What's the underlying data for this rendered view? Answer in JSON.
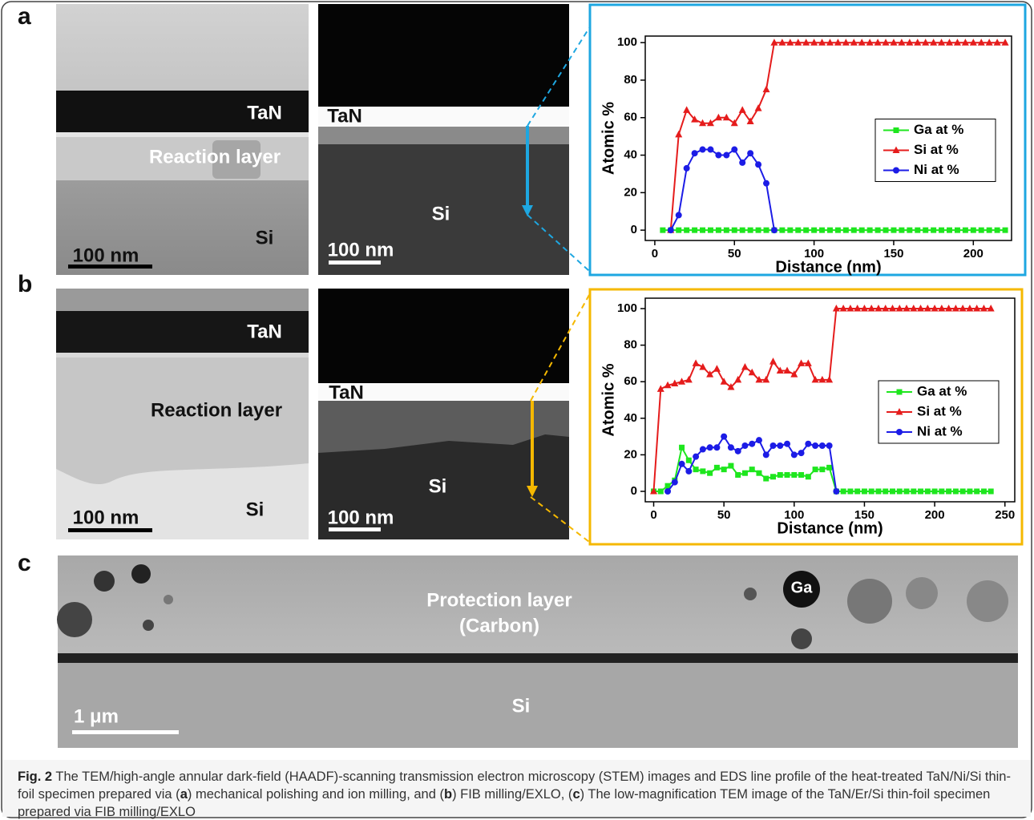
{
  "panels": [
    {
      "letter": "a",
      "images": [
        {
          "labels": [
            "TaN",
            "Reaction layer",
            "Si"
          ],
          "scale": "100 nm"
        },
        {
          "labels": [
            "TaN",
            "Si"
          ],
          "scale": "100 nm"
        }
      ]
    },
    {
      "letter": "b",
      "images": [
        {
          "labels": [
            "TaN",
            "Reaction layer",
            "Si"
          ],
          "scale": "100 nm"
        },
        {
          "labels": [
            "TaN",
            "Si"
          ],
          "scale": "100 nm"
        }
      ]
    },
    {
      "letter": "c",
      "images": [
        {
          "labels": [
            "Protection layer",
            "(Carbon)",
            "Ga",
            "Si"
          ],
          "scale": "1 μm"
        }
      ]
    }
  ],
  "caption": {
    "label": "Fig. 2",
    "parts": [
      "The TEM/high-angle annular dark-field (HAADF)-scanning transmission electron microscopy (STEM) images and EDS line profile of the heat-treated TaN/Ni/Si thin-foil specimen prepared via (",
      "a",
      ") mechanical polishing and ion milling, and (",
      "b",
      ") FIB milling/EXLO, (",
      "c",
      ") The low-magnification TEM image of the TaN/Er/Si thin-foil specimen prepared via FIB milling/EXLO"
    ]
  },
  "chart_data": [
    {
      "type": "line",
      "x_label": "Distance (nm)",
      "y_label": "Atomic %",
      "x": [
        5,
        10,
        15,
        20,
        25,
        30,
        35,
        40,
        45,
        50,
        55,
        60,
        65,
        70,
        75,
        80,
        85,
        90,
        95,
        100,
        105,
        110,
        115,
        120,
        125,
        130,
        135,
        140,
        145,
        150,
        155,
        160,
        165,
        170,
        175,
        180,
        185,
        190,
        195,
        200,
        205,
        210,
        215,
        220
      ],
      "xlim": [
        -6,
        224
      ],
      "xticks": [
        0,
        50,
        100,
        150,
        200
      ],
      "ylim": [
        -5.5,
        103.5
      ],
      "yticks": [
        0,
        20,
        40,
        60,
        80,
        100
      ],
      "legend": "center right",
      "series": [
        {
          "name": "Ga at %",
          "color": "#1ee61e",
          "marker": "square",
          "values": [
            0,
            0,
            0,
            0,
            0,
            0,
            0,
            0,
            0,
            0,
            0,
            0,
            0,
            0,
            0,
            0,
            0,
            0,
            0,
            0,
            0,
            0,
            0,
            0,
            0,
            0,
            0,
            0,
            0,
            0,
            0,
            0,
            0,
            0,
            0,
            0,
            0,
            0,
            0,
            0,
            0,
            0,
            0,
            0
          ]
        },
        {
          "name": "Si at %",
          "color": "#e51c1c",
          "marker": "triangle",
          "values": [
            null,
            0,
            51,
            64,
            59,
            57,
            57,
            60,
            60,
            57,
            64,
            58,
            65,
            75,
            100,
            100,
            100,
            100,
            100,
            100,
            100,
            100,
            100,
            100,
            100,
            100,
            100,
            100,
            100,
            100,
            100,
            100,
            100,
            100,
            100,
            100,
            100,
            100,
            100,
            100,
            100,
            100,
            100,
            100
          ]
        },
        {
          "name": "Ni at %",
          "color": "#1c1ce6",
          "marker": "circle",
          "values": [
            null,
            0,
            8,
            33,
            41,
            43,
            43,
            40,
            40,
            43,
            36,
            41,
            35,
            25,
            0,
            null,
            null,
            null,
            null,
            null,
            null,
            null,
            null,
            null,
            null,
            null,
            null,
            null,
            null,
            null,
            null,
            null,
            null,
            null,
            null,
            null,
            null,
            null,
            null,
            null,
            null,
            null,
            null,
            null
          ]
        }
      ]
    },
    {
      "type": "line",
      "x_label": "Distance (nm)",
      "y_label": "Atomic %",
      "x": [
        0,
        5,
        10,
        15,
        20,
        25,
        30,
        35,
        40,
        45,
        50,
        55,
        60,
        65,
        70,
        75,
        80,
        85,
        90,
        95,
        100,
        105,
        110,
        115,
        120,
        125,
        130,
        135,
        140,
        145,
        150,
        155,
        160,
        165,
        170,
        175,
        180,
        185,
        190,
        195,
        200,
        205,
        210,
        215,
        220,
        225,
        230,
        235,
        240
      ],
      "xlim": [
        -6,
        257
      ],
      "xticks": [
        0,
        50,
        100,
        150,
        200,
        250
      ],
      "ylim": [
        -5.7,
        105.7
      ],
      "yticks": [
        0,
        20,
        40,
        60,
        80,
        100
      ],
      "legend": "center right",
      "series": [
        {
          "name": "Ga at %",
          "color": "#1ee61e",
          "marker": "square",
          "values": [
            0,
            0,
            3,
            6,
            24,
            17,
            12,
            11,
            10,
            13,
            12,
            14,
            9,
            10,
            12,
            10,
            7,
            8,
            9,
            9,
            9,
            9,
            8,
            12,
            12,
            13,
            0,
            0,
            0,
            0,
            0,
            0,
            0,
            0,
            0,
            0,
            0,
            0,
            0,
            0,
            0,
            0,
            0,
            0,
            0,
            0,
            0,
            0,
            0
          ]
        },
        {
          "name": "Si at %",
          "color": "#e51c1c",
          "marker": "triangle",
          "values": [
            0,
            56,
            58,
            59,
            60,
            61,
            70,
            68,
            64,
            67,
            60,
            57,
            61,
            68,
            65,
            61,
            61,
            71,
            66,
            66,
            64,
            70,
            70,
            61,
            61,
            61,
            100,
            100,
            100,
            100,
            100,
            100,
            100,
            100,
            100,
            100,
            100,
            100,
            100,
            100,
            100,
            100,
            100,
            100,
            100,
            100,
            100,
            100,
            100
          ]
        },
        {
          "name": "Ni at %",
          "color": "#1c1ce6",
          "marker": "circle",
          "values": [
            null,
            null,
            0,
            5,
            15,
            11,
            19,
            23,
            24,
            24,
            30,
            24,
            22,
            25,
            26,
            28,
            20,
            25,
            25,
            26,
            20,
            21,
            26,
            25,
            25,
            25,
            0,
            null,
            null,
            null,
            null,
            null,
            null,
            null,
            null,
            null,
            null,
            null,
            null,
            null,
            null,
            null,
            null,
            null,
            null,
            null,
            null,
            null,
            null
          ]
        }
      ]
    }
  ]
}
